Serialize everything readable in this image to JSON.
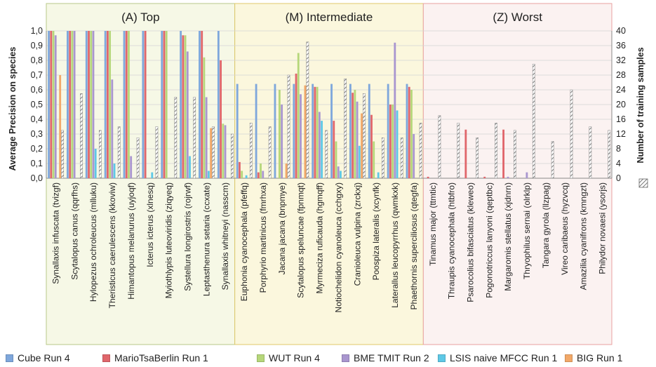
{
  "chart_data": {
    "type": "bar",
    "ylabel": "Average Precision on species",
    "y2label": "Number of training samples",
    "ylim": [
      0,
      1.0
    ],
    "y2lim": [
      0,
      40
    ],
    "yticks": [
      "0,0",
      "0,1",
      "0,2",
      "0,3",
      "0,4",
      "0,5",
      "0,6",
      "0,7",
      "0,8",
      "0,9",
      "1,0"
    ],
    "y2ticks": [
      "0",
      "4",
      "8",
      "12",
      "16",
      "20",
      "24",
      "28",
      "32",
      "36",
      "40"
    ],
    "groups": [
      {
        "title": "(A) Top",
        "bg": "#f6f8e6",
        "border": "#b8c98a"
      },
      {
        "title": "(M) Intermediate",
        "bg": "#fbf7dd",
        "border": "#e0c86a"
      },
      {
        "title": "(Z) Worst",
        "bg": "#fbf2f1",
        "border": "#e8a0a0"
      }
    ],
    "categories": [
      "Synallaxis infuscata (tvizgf)",
      "Scytalopus canus (qqrfhs)",
      "Hylopezus ochroleucus (mlluku)",
      "Theristicus caerulescens (kkoviw)",
      "Himantopus melanurus (uyjoqf)",
      "Icterus icterus (xlnesq)",
      "Myiothlypis luteoviridis (ziqyeq)",
      "Systellura longirostris (rojrwf)",
      "Leptasthenura setaria (ccxate)",
      "Synallaxis whitneyi (nasscm)",
      "Euphonia cyanocephala (pfeffq)",
      "Porphyrio martinicus (fmrhxa)",
      "Jacana jacana (bnpmye)",
      "Scytalopus speluncae (fpnmqt)",
      "Myrmeciza ruficauda (hgmqff)",
      "Notiochelidon cyanoleuca (cchgxy)",
      "Cranioleuca vulpina (zrckxj)",
      "Poospiza lateralis (xcynfk)",
      "Laterallus leucopyrrhus (qwmkxk)",
      "Phaethornis superciliosus (qtegfa)",
      "Tinamus major (ttmtic)",
      "Thraupis cyanocephala (htbfro)",
      "Psarocolius bifasciatus (kleweo)",
      "Pogonotriccus lanyoni (qeptbc)",
      "Margaromis stellatus (xjdnrn)",
      "Thryophilus sernai (olrklp)",
      "Tangara gyrola (llzpag)",
      "Vireo caribaeus (hyzvcq)",
      "Amazilia cyanifrons (kmngzt)",
      "Philydor novaesi (ysorjs)"
    ],
    "group_of": [
      0,
      0,
      0,
      0,
      0,
      0,
      0,
      0,
      0,
      0,
      1,
      1,
      1,
      1,
      1,
      1,
      1,
      1,
      1,
      1,
      2,
      2,
      2,
      2,
      2,
      2,
      2,
      2,
      2,
      2
    ],
    "series": [
      {
        "name": "Cube Run 4",
        "color": "#7ea7dc",
        "values": [
          1.0,
          1.0,
          1.0,
          1.0,
          1.0,
          1.0,
          1.0,
          1.0,
          1.0,
          1.0,
          0.64,
          0.64,
          0.64,
          0.64,
          0.64,
          0.64,
          0.64,
          0.64,
          0.64,
          0.64,
          0,
          0,
          0,
          0,
          0,
          0,
          0,
          0,
          0,
          0
        ]
      },
      {
        "name": "MarioTsaBerlin Run 1",
        "color": "#e0666b",
        "values": [
          1.0,
          1.0,
          1.0,
          1.0,
          1.0,
          1.0,
          1.0,
          0.97,
          1.0,
          0.8,
          0.11,
          0.04,
          0.0,
          0.71,
          0.62,
          0.39,
          0.58,
          0.43,
          0.5,
          0.62,
          0.01,
          0.0,
          0.33,
          0.01,
          0.33,
          0.0,
          0.0,
          0.0,
          0.0,
          0.0
        ]
      },
      {
        "name": "WUT Run 4",
        "color": "#b6d77a",
        "values": [
          1.0,
          1.0,
          1.0,
          1.0,
          1.0,
          0.0,
          1.0,
          0.97,
          0.82,
          0.37,
          0.05,
          0.1,
          0.6,
          0.85,
          0.62,
          0.25,
          0.6,
          0.25,
          0.5,
          0.6,
          0,
          0,
          0,
          0,
          0,
          0,
          0,
          0,
          0,
          0
        ]
      },
      {
        "name": "BME TMIT Run 2",
        "color": "#a996cf",
        "values": [
          0.97,
          1.0,
          1.0,
          0.67,
          0.15,
          0.0,
          0.0,
          0.86,
          0.55,
          0.36,
          0.0,
          0.05,
          0.5,
          0.57,
          0.45,
          0.08,
          0.52,
          0.0,
          0.92,
          0.3,
          0.0,
          0.0,
          0.0,
          0.0,
          0.01,
          0.04,
          0.0,
          0.0,
          0.0,
          0.0
        ]
      },
      {
        "name": "LSIS naive MFCC Run 1",
        "color": "#5ec8e6",
        "values": [
          0.0,
          0.0,
          0.2,
          0.1,
          0.0,
          0.04,
          0.0,
          0.15,
          0.05,
          0.0,
          0.02,
          0.0,
          0.0,
          0.0,
          0.39,
          0.05,
          0.22,
          0.04,
          0.46,
          0.0,
          0,
          0,
          0,
          0,
          0,
          0,
          0,
          0,
          0,
          0
        ]
      },
      {
        "name": "BIG Run 1",
        "color": "#f2a868",
        "values": [
          0.7,
          0.0,
          0.0,
          0.0,
          0.0,
          0.0,
          0.0,
          0.0,
          0.34,
          0.0,
          0.0,
          0.0,
          0.1,
          0.63,
          0.0,
          0.0,
          0.44,
          0.0,
          0.0,
          0.0,
          0,
          0,
          0,
          0,
          0,
          0,
          0,
          0,
          0,
          0
        ]
      }
    ],
    "training_samples": {
      "name": "Number of training samples",
      "values": [
        13,
        23,
        13,
        14,
        11,
        14,
        22,
        22,
        14,
        12,
        15,
        14,
        28,
        37,
        13,
        27,
        23,
        11,
        11,
        15,
        17,
        15,
        11,
        15,
        13,
        31,
        10,
        24,
        14,
        13
      ]
    },
    "legend_placement": "bottom"
  }
}
